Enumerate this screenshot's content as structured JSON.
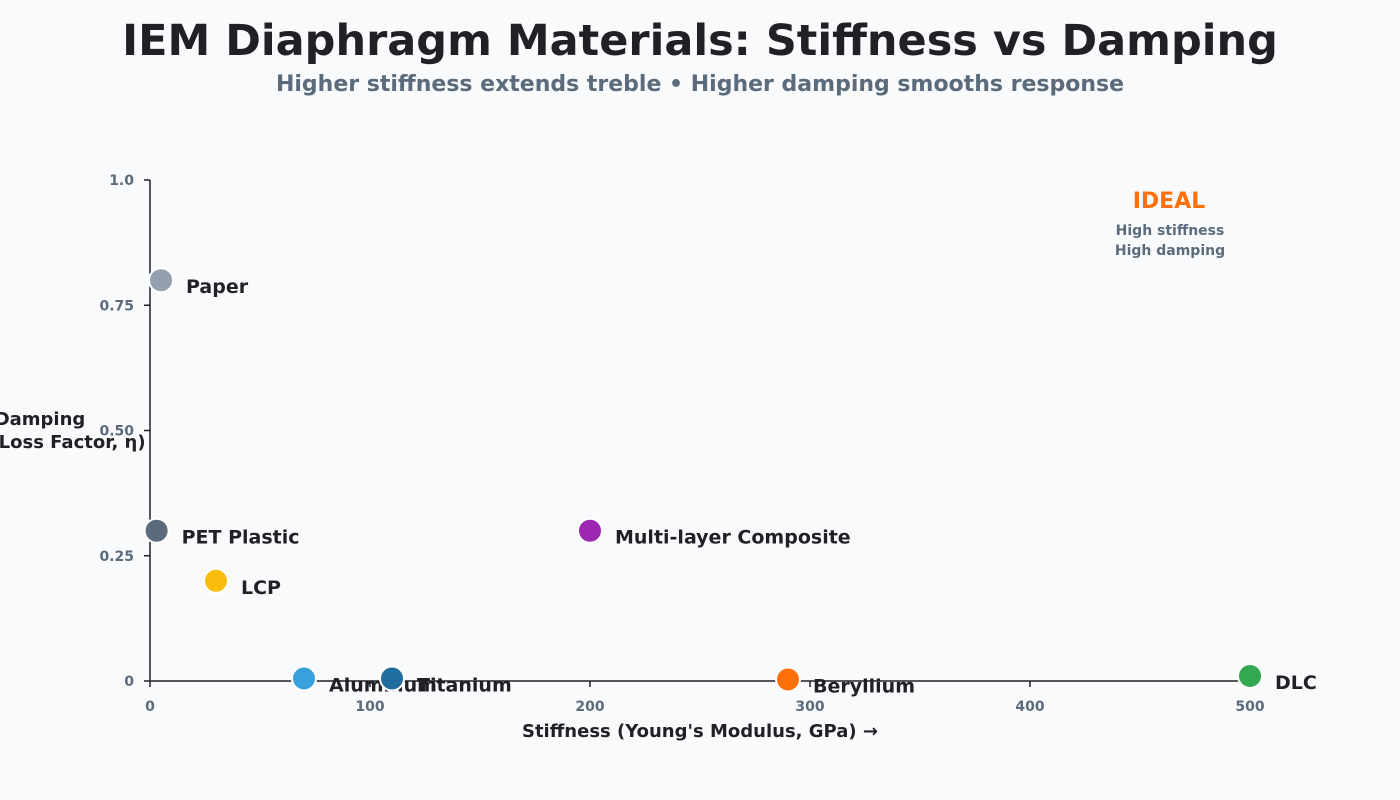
{
  "title": "IEM Diaphragm Materials: Stiffness vs Damping",
  "subtitle": "Higher stiffness extends treble • Higher damping smooths response",
  "chart_data": {
    "type": "scatter",
    "xlabel": "Stiffness (Young's Modulus, GPa) →",
    "ylabel_lines": [
      "Damping",
      "(Loss Factor, η)"
    ],
    "xlim": [
      0,
      500
    ],
    "ylim": [
      0,
      1.0
    ],
    "x_ticks": [
      {
        "value": 0,
        "label": "0"
      },
      {
        "value": 100,
        "label": "100"
      },
      {
        "value": 200,
        "label": "200"
      },
      {
        "value": 300,
        "label": "300"
      },
      {
        "value": 400,
        "label": "400"
      },
      {
        "value": 500,
        "label": "500"
      }
    ],
    "y_ticks": [
      {
        "value": 0,
        "label": "0"
      },
      {
        "value": 0.25,
        "label": "0.25"
      },
      {
        "value": 0.5,
        "label": "0.50"
      },
      {
        "value": 0.75,
        "label": "0.75"
      },
      {
        "value": 1.0,
        "label": "1.0"
      }
    ],
    "grid": false,
    "points": [
      {
        "name": "Paper",
        "x": 5,
        "y": 0.8,
        "color": "#94a0ad"
      },
      {
        "name": "PET Plastic",
        "x": 3,
        "y": 0.3,
        "color": "#5b6b7c"
      },
      {
        "name": "LCP",
        "x": 30,
        "y": 0.2,
        "color": "#fbbc0e"
      },
      {
        "name": "Multi-layer Composite",
        "x": 200,
        "y": 0.3,
        "color": "#9c27b0"
      },
      {
        "name": "Aluminum",
        "x": 70,
        "y": 0.005,
        "color": "#3aa0dc"
      },
      {
        "name": "Titanium",
        "x": 110,
        "y": 0.005,
        "color": "#1f6d9e"
      },
      {
        "name": "Beryllium",
        "x": 290,
        "y": 0.003,
        "color": "#ff6f0a"
      },
      {
        "name": "DLC",
        "x": 500,
        "y": 0.01,
        "color": "#33a852"
      }
    ],
    "annotation": {
      "title": "IDEAL",
      "title_color": "#ff6f0a",
      "lines": [
        "High stiffness",
        "High damping"
      ]
    }
  }
}
